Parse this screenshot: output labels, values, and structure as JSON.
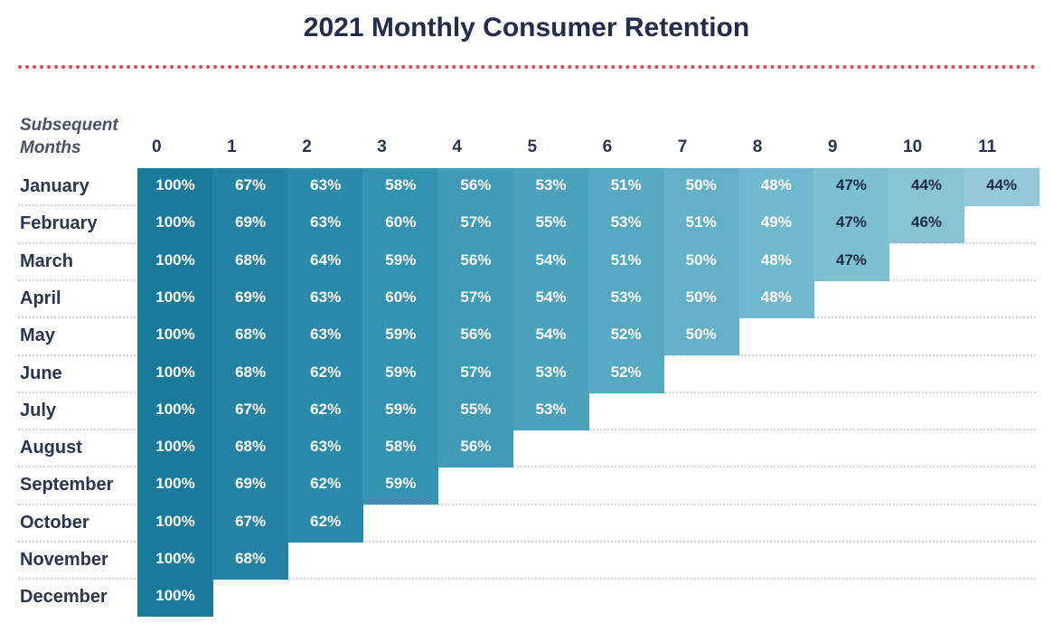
{
  "chart_data": {
    "type": "heatmap",
    "title": "2021 Monthly Consumer Retention",
    "xlabel": "Subsequent Months",
    "x": [
      "0",
      "1",
      "2",
      "3",
      "4",
      "5",
      "6",
      "7",
      "8",
      "9",
      "10",
      "11"
    ],
    "rows": [
      "January",
      "February",
      "March",
      "April",
      "May",
      "June",
      "July",
      "August",
      "September",
      "October",
      "November",
      "December"
    ],
    "values": [
      [
        100,
        67,
        63,
        58,
        56,
        53,
        51,
        50,
        48,
        47,
        44,
        44
      ],
      [
        100,
        69,
        63,
        60,
        57,
        55,
        53,
        51,
        49,
        47,
        46
      ],
      [
        100,
        68,
        64,
        59,
        56,
        54,
        51,
        50,
        48,
        47
      ],
      [
        100,
        69,
        63,
        60,
        57,
        54,
        53,
        50,
        48
      ],
      [
        100,
        68,
        63,
        59,
        56,
        54,
        52,
        50
      ],
      [
        100,
        68,
        62,
        59,
        57,
        53,
        52
      ],
      [
        100,
        67,
        62,
        59,
        55,
        53
      ],
      [
        100,
        68,
        63,
        58,
        56
      ],
      [
        100,
        69,
        62,
        59
      ],
      [
        100,
        67,
        62
      ],
      [
        100,
        68
      ],
      [
        100
      ]
    ],
    "value_suffix": "%",
    "grid": true,
    "colors": [
      "#1a7a9c",
      "#2483a4",
      "#2a8aab",
      "#3394b1",
      "#3f9bb8",
      "#4aa2bd",
      "#56a9c3",
      "#63b1c9",
      "#70b8cd",
      "#7dc0d2",
      "#89c4d5",
      "#93c9da"
    ],
    "text_colors": {
      "light": "#ffffff",
      "dark": "#1f2a44"
    },
    "accent": "#e0444f"
  }
}
